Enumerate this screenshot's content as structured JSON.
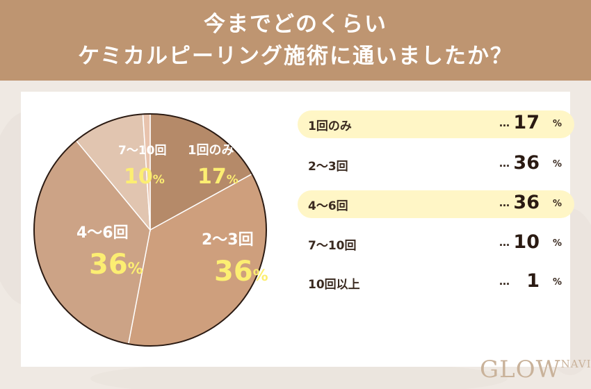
{
  "header": {
    "line1": "今までどのくらい",
    "line2": "ケミカルピーリング施術に通いましたか？"
  },
  "chart_data": {
    "type": "pie",
    "unit": "%",
    "categories": [
      "1回のみ",
      "2〜3回",
      "4〜6回",
      "7〜10回",
      "10回以上"
    ],
    "values": [
      17,
      36,
      36,
      10,
      1
    ],
    "colors": [
      "#b58a69",
      "#ce9f7d",
      "#cca386",
      "#e1c5b0",
      "#e8c3ad"
    ],
    "slice_label_text": [
      "#ffffff",
      "#ffffff",
      "#ffffff",
      "#ffffff",
      ""
    ],
    "slice_label_value": [
      "#fcee72",
      "#fcee72",
      "#fcee72",
      "#fcee72",
      ""
    ]
  },
  "legend": {
    "dots": "…",
    "unit": "%",
    "highlight_color": "#fff6c6"
  },
  "logo": {
    "main": "GLOW",
    "sub": "NAVI"
  }
}
